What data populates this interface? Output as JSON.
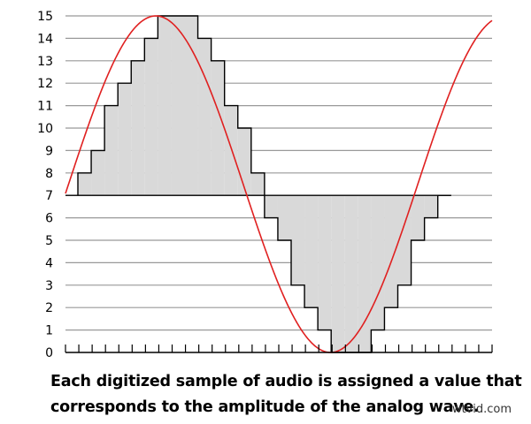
{
  "chart_data": {
    "type": "area",
    "subtype": "step quantization with analog sine overlay",
    "title": "",
    "xlabel": "",
    "ylabel": "",
    "ylim": [
      0,
      15
    ],
    "yticks": [
      "0",
      "1",
      "2",
      "3",
      "4",
      "5",
      "6",
      "7",
      "8",
      "9",
      "10",
      "11",
      "12",
      "13",
      "14",
      "15"
    ],
    "grid": true,
    "baseline": 7,
    "series": [
      {
        "kind": "step",
        "values": [
          8,
          9,
          11,
          12,
          13,
          14,
          15,
          15,
          15,
          14,
          13,
          11,
          10,
          8,
          6,
          5,
          3,
          2,
          1,
          0,
          0,
          0,
          1,
          2,
          3,
          5,
          6,
          7
        ],
        "fill": "#d9d9d9",
        "stroke": "#000000"
      },
      {
        "kind": "analog-wave",
        "color": "#e02020",
        "samples": 28,
        "offset": 7.5,
        "amplitude": 7.5,
        "start_value": 7.5,
        "peak_value": 15,
        "trough_value": 0
      }
    ]
  },
  "caption": {
    "line1": "Each digitized sample of audio is assigned a value that",
    "line2": "corresponds to the amplitude of the analog wave."
  },
  "watermark": "wtvid.com",
  "colors": {
    "wave": "#e02020",
    "fill": "#d9d9d9",
    "grid": "#999999"
  }
}
